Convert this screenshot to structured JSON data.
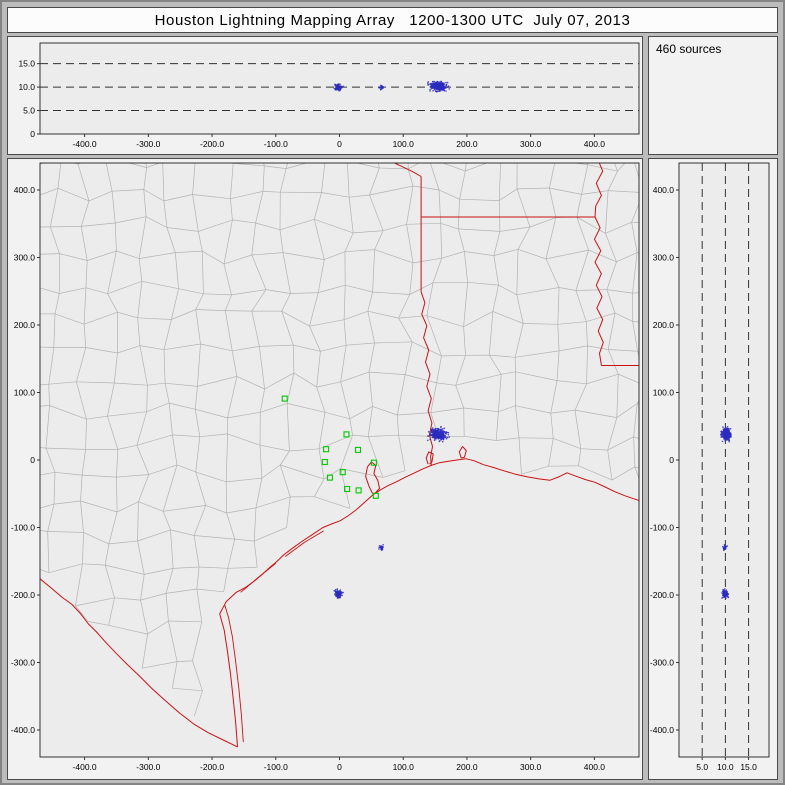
{
  "title": "Houston Lightning Mapping Array   1200-1300 UTC  July 07, 2013",
  "sources_label": "460 sources",
  "colors": {
    "frame": "#bcbcbc",
    "panel_bg": "#f2f2f2",
    "plot_bg": "#ececec",
    "axis": "#333333",
    "dash": "#333333",
    "county": "#b3b3b3",
    "state_border": "#cc1111",
    "station": "#00c800",
    "source": "#2b2bc0",
    "title_bg": "#fcfcfc"
  },
  "axes": {
    "ew_ticks": {
      "values": [
        -400,
        -300,
        -200,
        -100,
        0,
        100,
        200,
        300,
        400
      ],
      "labels": [
        "-400.0",
        "-300.0",
        "-200.0",
        "-100.0",
        "0",
        "100.0",
        "200.0",
        "300.0",
        "400.0"
      ]
    },
    "ns_ticks": {
      "values": [
        400,
        300,
        200,
        100,
        0,
        -100,
        -200,
        -300,
        -400
      ],
      "labels": [
        "400.0",
        "300.0",
        "200.0",
        "100.0",
        "0",
        "-100.0",
        "-200.0",
        "-300.0",
        "-400.0"
      ]
    },
    "alt_ticks": {
      "values": [
        0,
        5,
        10,
        15
      ],
      "labels": [
        "0",
        "5.0",
        "10.0",
        "15.0"
      ]
    },
    "alt_ticks_right": {
      "values": [
        5,
        10,
        15
      ],
      "labels": [
        "5.0",
        "10.0",
        "15.0"
      ]
    }
  },
  "chart_data": {
    "type": "scatter",
    "title": "Houston Lightning Mapping Array   1200-1300 UTC  July 07, 2013",
    "source_count": 460,
    "legend": "none",
    "panels": {
      "alt_ew": {
        "xlim": [
          -470,
          470
        ],
        "ylim": [
          0,
          19.4
        ],
        "gridlines_alt_km": [
          5,
          10,
          15
        ],
        "grid_style": "dashed"
      },
      "plan_view": {
        "xlim": [
          -470,
          470
        ],
        "ylim": [
          -440,
          440
        ],
        "grid": "county and state boundaries"
      },
      "alt_ns": {
        "xlim": [
          0,
          19.4
        ],
        "ylim": [
          -440,
          440
        ],
        "gridlines_alt_km": [
          5,
          10,
          15
        ],
        "grid_style": "dashed"
      }
    },
    "clusters": [
      {
        "name": "storm-east",
        "e": 155,
        "n": 38,
        "alt": 10.2,
        "count": 330,
        "spread_e": 13,
        "spread_n": 9,
        "spread_alt": 0.9
      },
      {
        "name": "storm-south",
        "e": -2,
        "n": -198,
        "alt": 10.0,
        "count": 100,
        "spread_e": 6,
        "spread_n": 6,
        "spread_alt": 0.6
      },
      {
        "name": "storm-southeast",
        "e": 66,
        "n": -130,
        "alt": 9.9,
        "count": 30,
        "spread_e": 4,
        "spread_n": 4,
        "spread_alt": 0.4
      }
    ],
    "stations": [
      [
        -86,
        91
      ],
      [
        11,
        38
      ],
      [
        -21,
        16
      ],
      [
        29,
        15
      ],
      [
        -23,
        -3
      ],
      [
        54,
        -4
      ],
      [
        5,
        -18
      ],
      [
        -15,
        -26
      ],
      [
        12,
        -43
      ],
      [
        30,
        -45
      ],
      [
        57,
        -53
      ]
    ]
  },
  "map": {
    "coastline": [
      [
        -160,
        -425
      ],
      [
        -163,
        -388
      ],
      [
        -167,
        -352
      ],
      [
        -171,
        -317
      ],
      [
        -176,
        -282
      ],
      [
        -181,
        -252
      ],
      [
        -188,
        -228
      ],
      [
        -178,
        -210
      ],
      [
        -162,
        -196
      ],
      [
        -148,
        -189
      ],
      [
        -136,
        -181
      ],
      [
        -122,
        -170
      ],
      [
        -109,
        -159
      ],
      [
        -99,
        -151
      ],
      [
        -87,
        -140
      ],
      [
        -73,
        -130
      ],
      [
        -58,
        -120
      ],
      [
        -42,
        -110
      ],
      [
        -26,
        -100
      ],
      [
        -10,
        -94
      ],
      [
        1,
        -90
      ],
      [
        13,
        -83
      ],
      [
        26,
        -74
      ],
      [
        39,
        -63
      ],
      [
        52,
        -52
      ],
      [
        63,
        -45
      ],
      [
        76,
        -38
      ],
      [
        90,
        -32
      ],
      [
        104,
        -25
      ],
      [
        118,
        -19
      ],
      [
        131,
        -13
      ],
      [
        144,
        -8
      ],
      [
        157,
        -4
      ],
      [
        170,
        -2
      ],
      [
        184,
        0
      ],
      [
        198,
        2
      ],
      [
        211,
        -1
      ],
      [
        226,
        -7
      ],
      [
        241,
        -11
      ],
      [
        258,
        -16
      ],
      [
        276,
        -21
      ],
      [
        295,
        -25
      ],
      [
        313,
        -28
      ],
      [
        330,
        -30
      ],
      [
        344,
        -25
      ],
      [
        357,
        -19
      ],
      [
        371,
        -24
      ],
      [
        386,
        -29
      ],
      [
        401,
        -33
      ],
      [
        417,
        -40
      ],
      [
        432,
        -47
      ],
      [
        448,
        -53
      ],
      [
        470,
        -60
      ]
    ],
    "rio_grande": [
      [
        -470,
        -176
      ],
      [
        -452,
        -190
      ],
      [
        -436,
        -203
      ],
      [
        -420,
        -214
      ],
      [
        -406,
        -228
      ],
      [
        -394,
        -243
      ],
      [
        -382,
        -254
      ],
      [
        -367,
        -270
      ],
      [
        -350,
        -287
      ],
      [
        -333,
        -303
      ],
      [
        -314,
        -320
      ],
      [
        -295,
        -338
      ],
      [
        -274,
        -356
      ],
      [
        -252,
        -374
      ],
      [
        -229,
        -391
      ],
      [
        -206,
        -404
      ],
      [
        -184,
        -414
      ],
      [
        -160,
        -425
      ]
    ],
    "borders": [
      {
        "name": "red-river-tx-ok",
        "pts": [
          [
            -40,
            465
          ],
          [
            -18,
            455
          ],
          [
            2,
            447
          ],
          [
            22,
            452
          ],
          [
            44,
            444
          ],
          [
            64,
            449
          ],
          [
            84,
            441
          ],
          [
            102,
            433
          ],
          [
            117,
            426
          ],
          [
            128,
            420
          ]
        ]
      },
      {
        "name": "ok-ar-border",
        "pts": [
          [
            90,
            438
          ],
          [
            90,
            465
          ]
        ]
      },
      {
        "name": "tx-ar-border",
        "pts": [
          [
            128,
            420
          ],
          [
            128,
            249
          ]
        ]
      },
      {
        "name": "la-ar-border",
        "pts": [
          [
            128,
            360
          ],
          [
            401,
            360
          ]
        ]
      },
      {
        "name": "sabine-river-tx-la",
        "pts": [
          [
            128,
            249
          ],
          [
            134,
            233
          ],
          [
            129,
            216
          ],
          [
            137,
            199
          ],
          [
            132,
            181
          ],
          [
            140,
            163
          ],
          [
            135,
            145
          ],
          [
            142,
            127
          ],
          [
            137,
            109
          ],
          [
            144,
            91
          ],
          [
            139,
            73
          ],
          [
            145,
            55
          ],
          [
            141,
            37
          ],
          [
            146,
            20
          ],
          [
            143,
            5
          ],
          [
            144,
            -8
          ]
        ]
      },
      {
        "name": "mississippi-river",
        "pts": [
          [
            413,
            465
          ],
          [
            405,
            446
          ],
          [
            413,
            428
          ],
          [
            403,
            410
          ],
          [
            411,
            392
          ],
          [
            402,
            376
          ],
          [
            401,
            360
          ],
          [
            409,
            344
          ],
          [
            400,
            327
          ],
          [
            410,
            310
          ],
          [
            401,
            293
          ],
          [
            411,
            276
          ],
          [
            403,
            259
          ],
          [
            412,
            242
          ],
          [
            404,
            225
          ],
          [
            413,
            208
          ],
          [
            406,
            191
          ],
          [
            414,
            174
          ],
          [
            408,
            158
          ],
          [
            411,
            140
          ]
        ]
      },
      {
        "name": "la-ms-31st-parallel",
        "pts": [
          [
            411,
            140
          ],
          [
            470,
            140
          ]
        ]
      }
    ],
    "lakes_bays": [
      {
        "name": "galveston-bay",
        "pts": [
          [
            52,
            -50
          ],
          [
            46,
            -38
          ],
          [
            41,
            -24
          ],
          [
            44,
            -10
          ],
          [
            50,
            -3
          ],
          [
            57,
            -8
          ],
          [
            54,
            -20
          ],
          [
            60,
            -30
          ],
          [
            63,
            -42
          ],
          [
            55,
            -50
          ]
        ]
      },
      {
        "name": "sabine-lake",
        "pts": [
          [
            139,
            -6
          ],
          [
            136,
            3
          ],
          [
            140,
            12
          ],
          [
            147,
            9
          ],
          [
            145,
            -3
          ],
          [
            141,
            -6
          ]
        ]
      },
      {
        "name": "calcasieu-lake",
        "pts": [
          [
            191,
            3
          ],
          [
            188,
            12
          ],
          [
            193,
            20
          ],
          [
            199,
            14
          ],
          [
            196,
            4
          ],
          [
            191,
            3
          ]
        ]
      }
    ],
    "barrier_islands": [
      [
        [
          -151,
          -418
        ],
        [
          -154,
          -378
        ],
        [
          -158,
          -338
        ],
        [
          -163,
          -298
        ],
        [
          -168,
          -262
        ],
        [
          -174,
          -234
        ],
        [
          -180,
          -215
        ]
      ],
      [
        [
          -155,
          -196
        ],
        [
          -125,
          -172
        ],
        [
          -100,
          -153
        ]
      ],
      [
        [
          -85,
          -143
        ],
        [
          -55,
          -122
        ],
        [
          -25,
          -105
        ]
      ]
    ],
    "gulf_close": [
      [
        470,
        -470
      ],
      [
        -150,
        -470
      ]
    ],
    "mexico_close": [
      [
        -160,
        -470
      ],
      [
        -470,
        -470
      ]
    ]
  }
}
